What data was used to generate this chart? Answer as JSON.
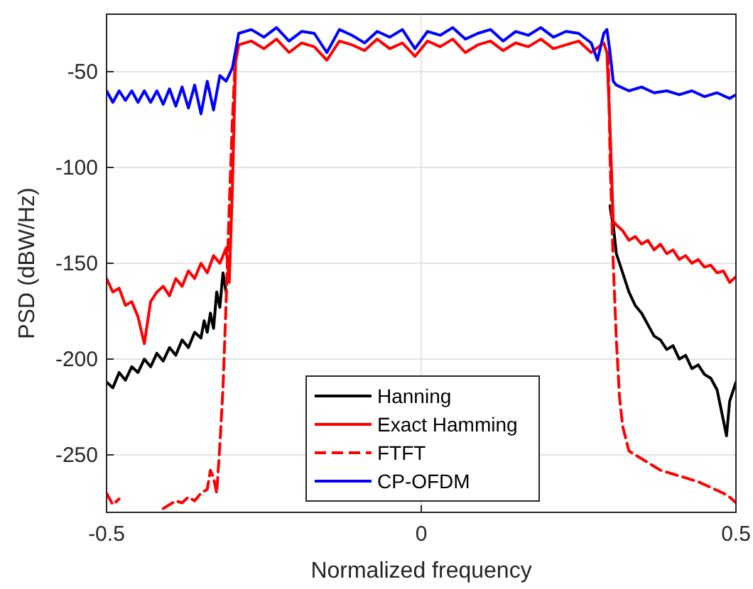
{
  "chart_data": {
    "type": "line",
    "xlabel": "Normalized frequency",
    "ylabel": "PSD (dBW/Hz)",
    "xlim": [
      -0.5,
      0.5
    ],
    "ylim": [
      -280,
      -20
    ],
    "xticks": [
      -0.5,
      0,
      0.5
    ],
    "yticks": [
      -250,
      -200,
      -150,
      -100,
      -50
    ],
    "grid": true,
    "legend": "bottom",
    "series": [
      {
        "name": "Hanning",
        "color": "#000000",
        "line_style": "solid",
        "x": [
          -0.5,
          -0.49,
          -0.48,
          -0.47,
          -0.46,
          -0.45,
          -0.44,
          -0.43,
          -0.42,
          -0.41,
          -0.4,
          -0.39,
          -0.38,
          -0.37,
          -0.36,
          -0.35,
          -0.345,
          -0.34,
          -0.335,
          -0.33,
          -0.325,
          -0.32,
          -0.315,
          -0.31,
          -0.305,
          -0.3,
          0,
          0.3,
          0.302,
          0.305,
          0.31,
          0.32,
          0.33,
          0.34,
          0.35,
          0.36,
          0.37,
          0.38,
          0.39,
          0.4,
          0.41,
          0.42,
          0.43,
          0.44,
          0.45,
          0.46,
          0.47,
          0.48,
          0.485,
          0.49,
          0.5
        ],
        "values": [
          -212,
          -215,
          -207,
          -211,
          -204,
          -207,
          -200,
          -204,
          -197,
          -201,
          -194,
          -198,
          -190,
          -194,
          -186,
          -189,
          -180,
          -186,
          -176,
          -184,
          -165,
          -173,
          -155,
          -165,
          null,
          null,
          null,
          -120,
          -125,
          -130,
          -145,
          -155,
          -165,
          -172,
          -176,
          -182,
          -188,
          -190,
          -195,
          -193,
          -200,
          -198,
          -205,
          -203,
          -208,
          -210,
          -216,
          -232,
          -240,
          -222,
          -212
        ]
      },
      {
        "name": "Exact Hamming",
        "color": "#ff0000",
        "line_style": "solid",
        "x": [
          -0.5,
          -0.49,
          -0.48,
          -0.47,
          -0.46,
          -0.45,
          -0.44,
          -0.43,
          -0.42,
          -0.41,
          -0.4,
          -0.39,
          -0.38,
          -0.37,
          -0.36,
          -0.35,
          -0.34,
          -0.33,
          -0.32,
          -0.31,
          -0.305,
          -0.3,
          -0.295,
          -0.29,
          -0.27,
          -0.25,
          -0.23,
          -0.21,
          -0.19,
          -0.17,
          -0.15,
          -0.13,
          -0.11,
          -0.09,
          -0.07,
          -0.05,
          -0.03,
          -0.01,
          0.01,
          0.03,
          0.05,
          0.07,
          0.09,
          0.11,
          0.13,
          0.15,
          0.17,
          0.19,
          0.21,
          0.23,
          0.25,
          0.27,
          0.29,
          0.295,
          0.3,
          0.305,
          0.31,
          0.32,
          0.33,
          0.34,
          0.35,
          0.36,
          0.37,
          0.38,
          0.39,
          0.4,
          0.41,
          0.42,
          0.43,
          0.44,
          0.45,
          0.46,
          0.47,
          0.48,
          0.49,
          0.5
        ],
        "values": [
          -158,
          -165,
          -163,
          -172,
          -170,
          -178,
          -192,
          -170,
          -165,
          -162,
          -167,
          -158,
          -162,
          -154,
          -158,
          -150,
          -155,
          -146,
          -150,
          -142,
          -160,
          -110,
          -45,
          -36,
          -34,
          -38,
          -33,
          -40,
          -35,
          -37,
          -44,
          -34,
          -36,
          -39,
          -33,
          -38,
          -35,
          -42,
          -34,
          -37,
          -33,
          -40,
          -36,
          -34,
          -39,
          -35,
          -37,
          -33,
          -38,
          -36,
          -34,
          -40,
          -35,
          -40,
          -80,
          -128,
          -130,
          -133,
          -138,
          -136,
          -140,
          -138,
          -143,
          -140,
          -145,
          -143,
          -148,
          -146,
          -150,
          -148,
          -152,
          -151,
          -155,
          -154,
          -160,
          -157
        ]
      },
      {
        "name": "FTFT",
        "color": "#ff0000",
        "line_style": "dashed",
        "x": [
          -0.5,
          -0.49,
          -0.48,
          -0.47,
          -0.42,
          -0.41,
          -0.4,
          -0.39,
          -0.38,
          -0.37,
          -0.36,
          -0.35,
          -0.34,
          -0.335,
          -0.33,
          -0.325,
          -0.32,
          -0.315,
          -0.31,
          -0.305,
          -0.3,
          -0.295,
          0,
          0.297,
          0.3,
          0.305,
          0.31,
          0.315,
          0.32,
          0.33,
          0.34,
          0.36,
          0.38,
          0.4,
          0.42,
          0.44,
          0.46,
          0.48,
          0.49,
          0.5
        ],
        "values": [
          -270,
          -276,
          -273,
          null,
          null,
          -278,
          -276,
          -274,
          -275,
          -272,
          -274,
          -270,
          -268,
          -258,
          -262,
          -270,
          -245,
          -215,
          -170,
          -120,
          -75,
          -40,
          null,
          -40,
          -95,
          -150,
          -190,
          -220,
          -235,
          -248,
          -250,
          -254,
          -258,
          -260,
          -262,
          -264,
          -267,
          -270,
          -272,
          -275
        ]
      },
      {
        "name": "CP-OFDM",
        "color": "#0000ff",
        "line_style": "solid",
        "x": [
          -0.5,
          -0.49,
          -0.48,
          -0.47,
          -0.46,
          -0.45,
          -0.44,
          -0.43,
          -0.42,
          -0.41,
          -0.4,
          -0.39,
          -0.38,
          -0.37,
          -0.36,
          -0.35,
          -0.34,
          -0.33,
          -0.32,
          -0.31,
          -0.3,
          -0.29,
          -0.27,
          -0.25,
          -0.23,
          -0.21,
          -0.19,
          -0.17,
          -0.15,
          -0.13,
          -0.11,
          -0.09,
          -0.07,
          -0.05,
          -0.03,
          -0.01,
          0.01,
          0.03,
          0.05,
          0.07,
          0.09,
          0.11,
          0.13,
          0.15,
          0.17,
          0.19,
          0.21,
          0.23,
          0.25,
          0.27,
          0.28,
          0.29,
          0.295,
          0.3,
          0.305,
          0.31,
          0.33,
          0.35,
          0.37,
          0.39,
          0.41,
          0.43,
          0.45,
          0.47,
          0.49,
          0.5
        ],
        "values": [
          -60,
          -66,
          -60,
          -65,
          -60,
          -66,
          -60,
          -66,
          -60,
          -67,
          -59,
          -68,
          -58,
          -69,
          -57,
          -72,
          -55,
          -70,
          -52,
          -55,
          -48,
          -30,
          -28,
          -32,
          -27,
          -34,
          -29,
          -30,
          -40,
          -28,
          -31,
          -35,
          -29,
          -32,
          -28,
          -38,
          -29,
          -31,
          -27,
          -33,
          -30,
          -28,
          -34,
          -29,
          -31,
          -27,
          -32,
          -29,
          -30,
          -35,
          -44,
          -30,
          -28,
          -40,
          -55,
          -57,
          -60,
          -58,
          -61,
          -60,
          -62,
          -60,
          -63,
          -61,
          -64,
          -62
        ]
      }
    ]
  }
}
